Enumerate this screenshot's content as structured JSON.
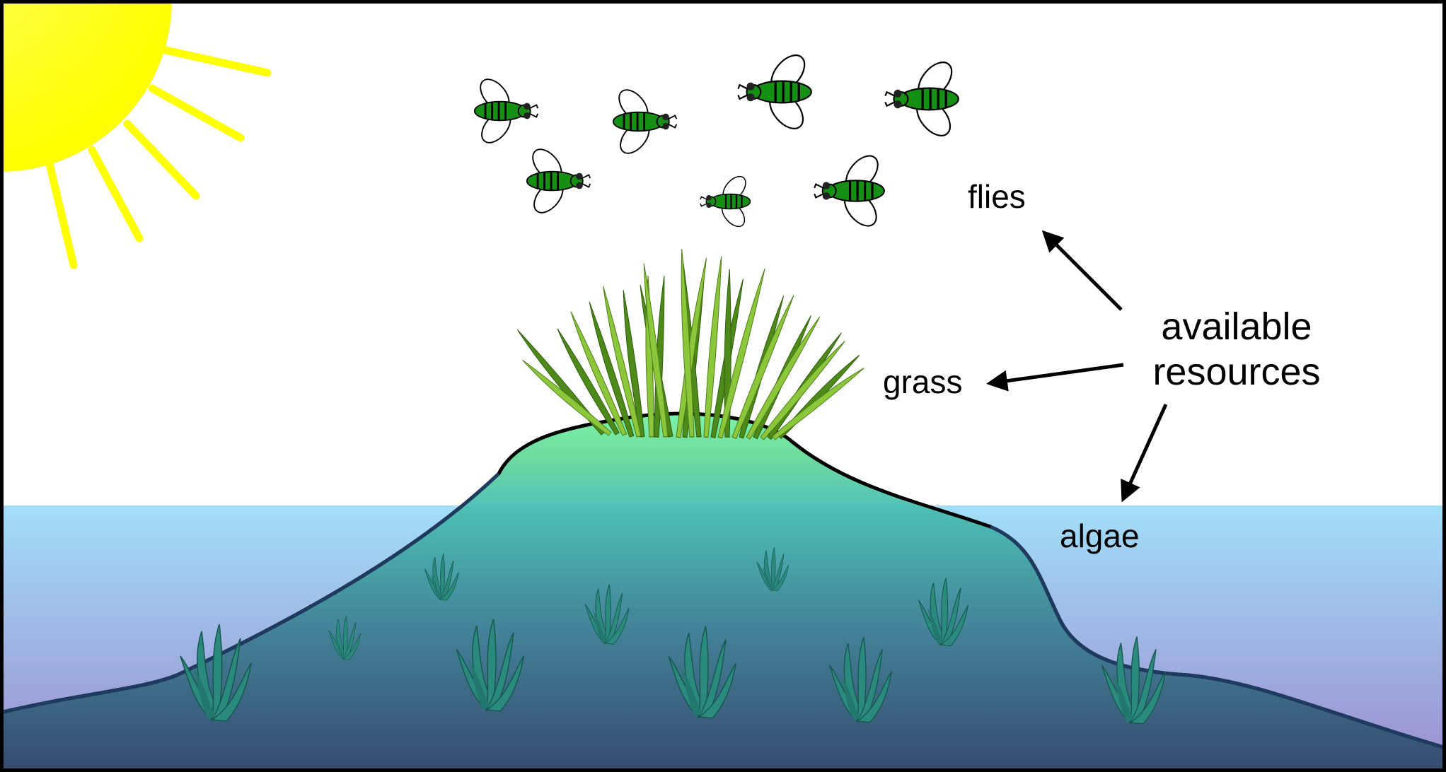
{
  "labels": {
    "flies": "flies",
    "grass": "grass",
    "algae": "algae",
    "resources_line1": "available",
    "resources_line2": "resources"
  },
  "colors": {
    "sun": "#ffff00",
    "sky": "#ffffff",
    "water_top": "#a0dcfa",
    "water_bottom": "#9a8fd0",
    "island_top": "#6cf0a0",
    "island_deep": "#2a4a5e",
    "grass": "#6faa1e",
    "algae": "#2a8a7e",
    "fly_body": "#159015",
    "frame": "#000000"
  },
  "icons": {
    "sun": "sun-icon",
    "fly": "fly-icon",
    "grass": "grass-tuft-icon",
    "algae": "algae-icon",
    "arrow": "arrow-icon"
  }
}
